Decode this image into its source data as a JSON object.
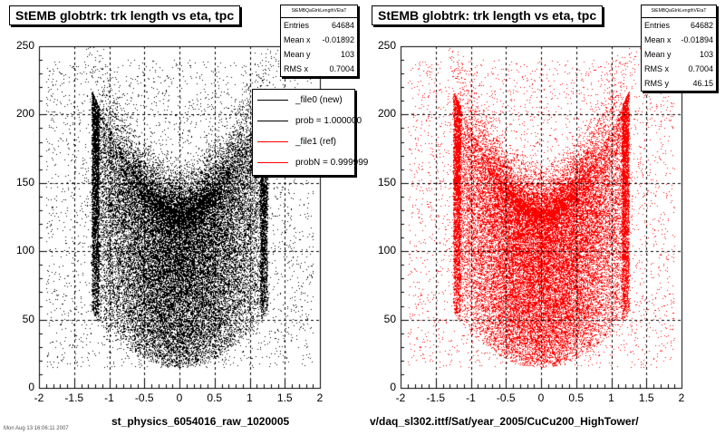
{
  "colors": {
    "left": "#000000",
    "right": "#ff0000"
  },
  "chart_data": [
    {
      "type": "scatter",
      "title": "StEMB globtrk: trk length vs eta, tpc",
      "xlabel": "st_physics_6054016_raw_1020005",
      "ylabel": "",
      "xlim": [
        -2,
        2
      ],
      "ylim": [
        0,
        250
      ],
      "x_ticks": [
        "-2",
        "-1.5",
        "-1",
        "-0.5",
        "0",
        "0.5",
        "1",
        "1.5",
        "2"
      ],
      "y_ticks": [
        "0",
        "50",
        "100",
        "150",
        "200",
        "250"
      ],
      "grid": true,
      "point_color": "#000000",
      "stats": {
        "name": "StEMBQaGtrkLengthVEtaT",
        "rows": [
          {
            "label": "Entries",
            "value": "64684"
          },
          {
            "label": "Mean x",
            "value": "-0.01892"
          },
          {
            "label": "Mean y",
            "value": "103"
          },
          {
            "label": "RMS x",
            "value": "0.7004"
          }
        ]
      },
      "legend": {
        "placement": "top-right",
        "entries": [
          {
            "label": "_file0 (new)",
            "color": "#000000"
          },
          {
            "label": "prob = 1.000000",
            "color": "#000000"
          },
          {
            "label": "_file1 (ref)",
            "color": "#ff0000"
          },
          {
            "label": "probN = 0.999999",
            "color": "#ff0000"
          }
        ]
      },
      "footer": "Mon Aug 13 16:06:11 2007"
    },
    {
      "type": "scatter",
      "title": "StEMB globtrk: trk length vs eta, tpc",
      "xlabel": "v/daq_sl302.ittf/Sat/year_2005/CuCu200_HighTower/",
      "ylabel": "",
      "xlim": [
        -2,
        2
      ],
      "ylim": [
        0,
        250
      ],
      "x_ticks": [
        "-2",
        "-1.5",
        "-1",
        "-0.5",
        "0",
        "0.5",
        "1",
        "1.5",
        "2"
      ],
      "y_ticks": [
        "0",
        "50",
        "100",
        "150",
        "200",
        "250"
      ],
      "grid": true,
      "point_color": "#ff0000",
      "stats": {
        "name": "StEMBQaGtrkLengthVEtaT",
        "rows": [
          {
            "label": "Entries",
            "value": "64682"
          },
          {
            "label": "Mean x",
            "value": "-0.01894"
          },
          {
            "label": "Mean y",
            "value": "103"
          },
          {
            "label": "RMS x",
            "value": "0.7004"
          },
          {
            "label": "RMS y",
            "value": "46.15"
          }
        ]
      }
    }
  ]
}
